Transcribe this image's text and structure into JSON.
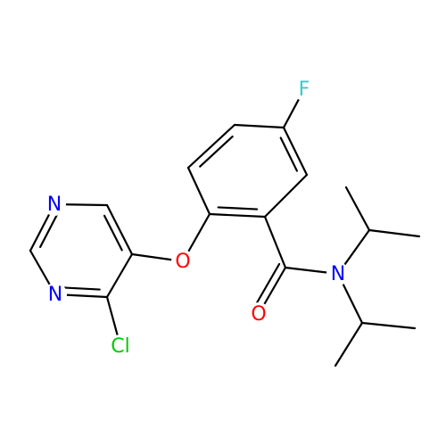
{
  "atoms": [
    "F",
    "N",
    "N",
    "O",
    "O",
    "N",
    "Cl"
  ]
}
